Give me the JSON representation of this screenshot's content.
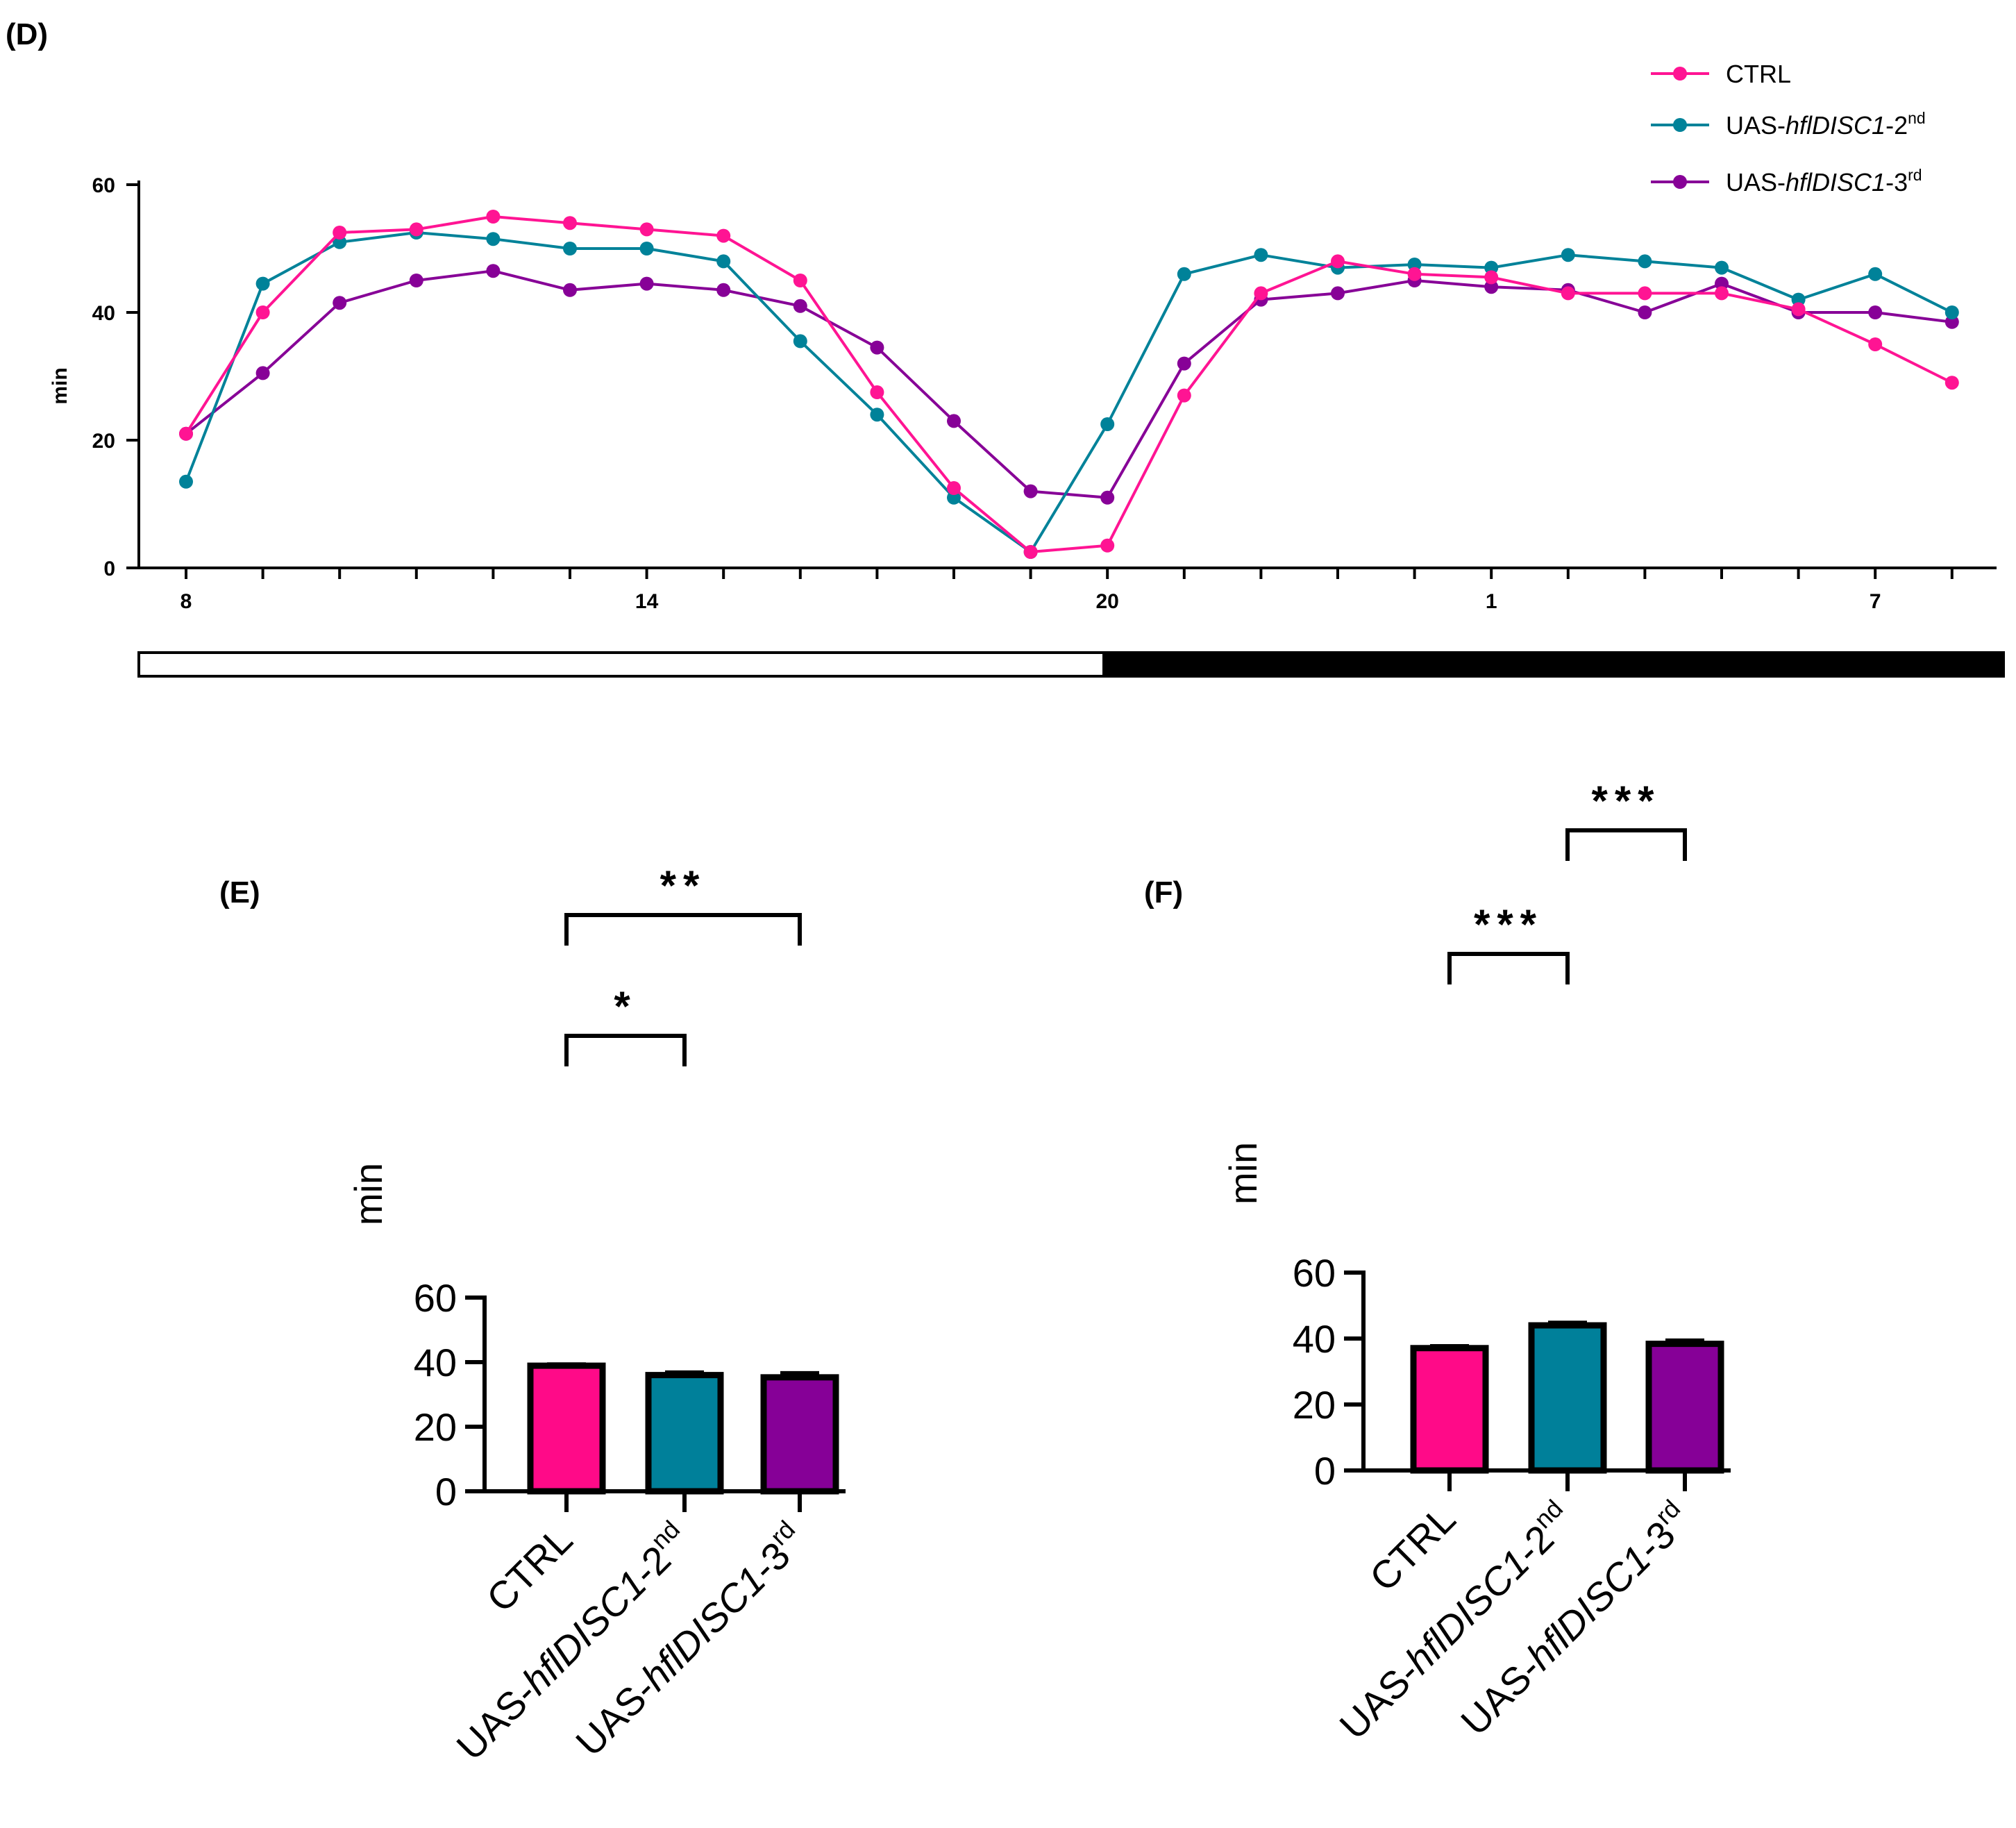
{
  "colors": {
    "ctrl": "#FF1493",
    "line_2nd": "#008299",
    "line_3rd": "#870197",
    "bar_ctrl": "#FF0A88",
    "bar_2nd": "#00809A",
    "bar_3rd": "#860097"
  },
  "chart_data": [
    {
      "panel": "(D)",
      "type": "line",
      "ylabel": "min",
      "ylim": [
        0,
        60
      ],
      "yticks": [
        0,
        20,
        40,
        60
      ],
      "x_tick_labels": [
        "8",
        "14",
        "20",
        "1",
        "7"
      ],
      "x_tick_hours": [
        8,
        14,
        20,
        25,
        30
      ],
      "x": [
        8,
        9,
        10,
        11,
        12,
        13,
        14,
        15,
        16,
        17,
        18,
        19,
        20,
        21,
        22,
        23,
        24,
        25,
        26,
        27,
        28,
        29,
        30,
        31
      ],
      "light_dark_bar": {
        "light": "08:00-20:00",
        "dark": "20:00-08:00"
      },
      "legend_position": "top-right",
      "series": [
        {
          "name": "CTRL",
          "name_prefix": "CTRL",
          "name_italic": "",
          "name_suffix": "",
          "name_sup": "",
          "color_key": "ctrl",
          "values": [
            21,
            40,
            52.5,
            53,
            55,
            54,
            53,
            52,
            45,
            27.5,
            12.5,
            2.5,
            3.5,
            27,
            43,
            48,
            46,
            45.5,
            43,
            43,
            43,
            40.5,
            35,
            29
          ]
        },
        {
          "name": "UAS-hflDISC1-2nd",
          "name_prefix": "UAS-",
          "name_italic": "hflDISC1",
          "name_suffix": "-2",
          "name_sup": "nd",
          "color_key": "line_2nd",
          "values": [
            13.5,
            44.5,
            51,
            52.5,
            51.5,
            50,
            50,
            48,
            35.5,
            24,
            11,
            2.5,
            22.5,
            46,
            49,
            47,
            47.5,
            47,
            49,
            48,
            47,
            42,
            46,
            40
          ]
        },
        {
          "name": "UAS-hflDISC1-3rd",
          "name_prefix": "UAS-",
          "name_italic": "hflDISC1",
          "name_suffix": "-3",
          "name_sup": "rd",
          "color_key": "line_3rd",
          "values": [
            21,
            30.5,
            41.5,
            45,
            46.5,
            43.5,
            44.5,
            43.5,
            41,
            34.5,
            23,
            12,
            11,
            32,
            42,
            43,
            45,
            44,
            43.5,
            40,
            44.5,
            40,
            40,
            38.5
          ]
        }
      ]
    },
    {
      "panel": "(E)",
      "type": "bar",
      "ylabel": "min",
      "ylim": [
        0,
        60
      ],
      "yticks": [
        0,
        20,
        40,
        60
      ],
      "categories": [
        {
          "prefix": "CTRL",
          "italic": "",
          "suffix": "",
          "sup": ""
        },
        {
          "prefix": "UAS-",
          "italic": "hflDISC1",
          "suffix": "-2",
          "sup": "nd"
        },
        {
          "prefix": "UAS-",
          "italic": "hflDISC1",
          "suffix": "-3",
          "sup": "rd"
        }
      ],
      "values": [
        38.9,
        36.0,
        35.3
      ],
      "errors": [
        0.5,
        0.9,
        1.4
      ],
      "significance": [
        {
          "from": 0,
          "to": 1,
          "label": "*",
          "level": 1
        },
        {
          "from": 0,
          "to": 2,
          "label": "**",
          "level": 2
        }
      ]
    },
    {
      "panel": "(F)",
      "type": "bar",
      "ylabel": "min",
      "ylim": [
        0,
        60
      ],
      "yticks": [
        0,
        20,
        40,
        60
      ],
      "categories": [
        {
          "prefix": "CTRL",
          "italic": "",
          "suffix": "",
          "sup": ""
        },
        {
          "prefix": "UAS-",
          "italic": "hflDISC1",
          "suffix": "-2",
          "sup": "nd"
        },
        {
          "prefix": "UAS-",
          "italic": "hflDISC1",
          "suffix": "-3",
          "sup": "rd"
        }
      ],
      "values": [
        37.1,
        44.0,
        38.4
      ],
      "errors": [
        0.7,
        0.9,
        1.1
      ],
      "significance": [
        {
          "from": 0,
          "to": 1,
          "label": "***",
          "level": 1
        },
        {
          "from": 1,
          "to": 2,
          "label": "***",
          "level": 2
        }
      ]
    }
  ]
}
